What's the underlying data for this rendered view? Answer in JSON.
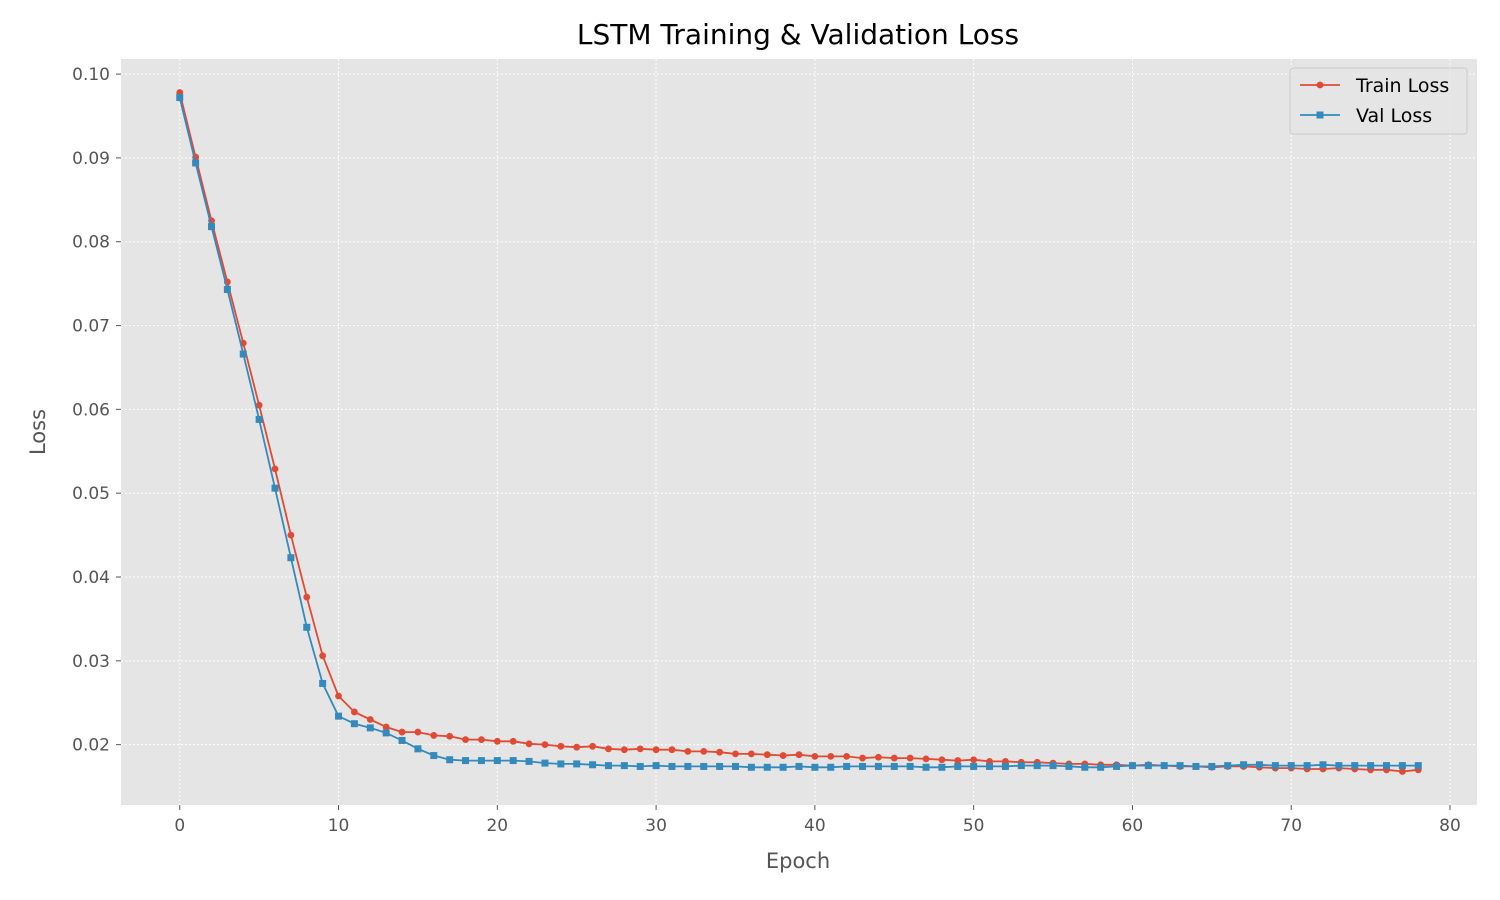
{
  "chart_data": {
    "type": "line",
    "title": "LSTM Training & Validation Loss",
    "xlabel": "Epoch",
    "ylabel": "Loss",
    "xlim": [
      -3.7,
      81.7
    ],
    "ylim": [
      0.0128,
      0.1018
    ],
    "xticks": [
      0,
      10,
      20,
      30,
      40,
      50,
      60,
      70,
      80
    ],
    "yticks": [
      0.02,
      0.03,
      0.04,
      0.05,
      0.06,
      0.07,
      0.08,
      0.09,
      0.1
    ],
    "xtick_labels": [
      "0",
      "10",
      "20",
      "30",
      "40",
      "50",
      "60",
      "70",
      "80"
    ],
    "ytick_labels": [
      "0.02",
      "0.03",
      "0.04",
      "0.05",
      "0.06",
      "0.07",
      "0.08",
      "0.09",
      "0.10"
    ],
    "grid": true,
    "legend_position": "top-right",
    "x": [
      0,
      1,
      2,
      3,
      4,
      5,
      6,
      7,
      8,
      9,
      10,
      11,
      12,
      13,
      14,
      15,
      16,
      17,
      18,
      19,
      20,
      21,
      22,
      23,
      24,
      25,
      26,
      27,
      28,
      29,
      30,
      31,
      32,
      33,
      34,
      35,
      36,
      37,
      38,
      39,
      40,
      41,
      42,
      43,
      44,
      45,
      46,
      47,
      48,
      49,
      50,
      51,
      52,
      53,
      54,
      55,
      56,
      57,
      58,
      59,
      60,
      61,
      62,
      63,
      64,
      65,
      66,
      67,
      68,
      69,
      70,
      71,
      72,
      73,
      74,
      75,
      76,
      77,
      78
    ],
    "series": [
      {
        "name": "Train Loss",
        "color": "#E24A33",
        "marker": "circle",
        "values": [
          0.0978,
          0.0901,
          0.0825,
          0.0752,
          0.0679,
          0.0605,
          0.0529,
          0.045,
          0.0376,
          0.0306,
          0.0258,
          0.0239,
          0.023,
          0.0221,
          0.0215,
          0.0215,
          0.0211,
          0.021,
          0.0206,
          0.0206,
          0.0204,
          0.0204,
          0.0201,
          0.02,
          0.0198,
          0.0197,
          0.0198,
          0.0195,
          0.0194,
          0.0195,
          0.0194,
          0.0194,
          0.0192,
          0.0192,
          0.0191,
          0.0189,
          0.0189,
          0.0188,
          0.0187,
          0.0188,
          0.0186,
          0.0186,
          0.0186,
          0.0184,
          0.0185,
          0.0184,
          0.0184,
          0.0183,
          0.0182,
          0.0181,
          0.0182,
          0.018,
          0.018,
          0.0179,
          0.0179,
          0.0178,
          0.0177,
          0.0177,
          0.0176,
          0.0176,
          0.0175,
          0.0176,
          0.0175,
          0.0174,
          0.0174,
          0.0173,
          0.0174,
          0.0174,
          0.0173,
          0.0172,
          0.0172,
          0.0171,
          0.0171,
          0.0172,
          0.0171,
          0.017,
          0.017,
          0.0168,
          0.017
        ]
      },
      {
        "name": "Val Loss",
        "color": "#348ABD",
        "marker": "square",
        "values": [
          0.0972,
          0.0894,
          0.0818,
          0.0743,
          0.0666,
          0.0588,
          0.0506,
          0.0423,
          0.034,
          0.0273,
          0.0234,
          0.0225,
          0.022,
          0.0214,
          0.0205,
          0.0195,
          0.0187,
          0.0182,
          0.0181,
          0.0181,
          0.0181,
          0.0181,
          0.018,
          0.0178,
          0.0177,
          0.0177,
          0.0176,
          0.0175,
          0.0175,
          0.0174,
          0.0175,
          0.0174,
          0.0174,
          0.0174,
          0.0174,
          0.0174,
          0.0173,
          0.0173,
          0.0173,
          0.0174,
          0.0173,
          0.0173,
          0.0174,
          0.0174,
          0.0174,
          0.0174,
          0.0174,
          0.0173,
          0.0173,
          0.0174,
          0.0174,
          0.0174,
          0.0174,
          0.0175,
          0.0175,
          0.0175,
          0.0174,
          0.0173,
          0.0173,
          0.0174,
          0.0175,
          0.0175,
          0.0175,
          0.0175,
          0.0174,
          0.0174,
          0.0175,
          0.0176,
          0.0176,
          0.0175,
          0.0175,
          0.0175,
          0.0176,
          0.0175,
          0.0175,
          0.0175,
          0.0175,
          0.0175,
          0.0175
        ]
      }
    ]
  },
  "colors": {
    "plot_background": "#E5E5E5",
    "grid": "#FFFFFF",
    "tick_text": "#555555"
  }
}
